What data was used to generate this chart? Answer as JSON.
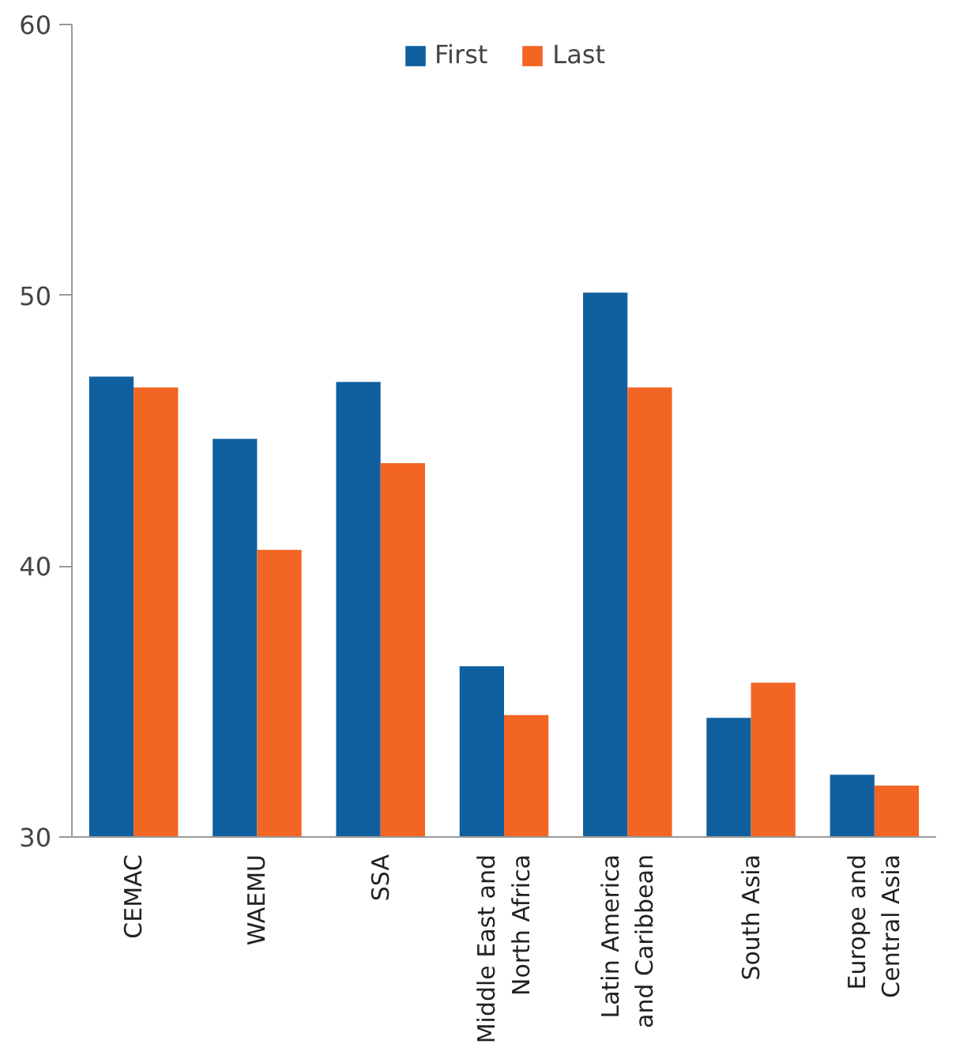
{
  "chart_data": {
    "type": "bar",
    "categories": [
      "CEMAC",
      "WAEMU",
      "SSA",
      "Middle East and\nNorth Africa",
      "Latin America\nand Caribbean",
      "South Asia",
      "Europe and\nCentral Asia"
    ],
    "series": [
      {
        "name": "First",
        "color": "#1060a0",
        "values": [
          47.0,
          44.7,
          46.8,
          36.3,
          50.1,
          34.4,
          32.3
        ]
      },
      {
        "name": "Last",
        "color": "#f26522",
        "values": [
          46.6,
          40.6,
          43.8,
          34.5,
          46.6,
          35.7,
          31.9
        ]
      }
    ],
    "ylim": [
      30,
      60
    ],
    "yticks": [
      30,
      40,
      50,
      60
    ],
    "grid": false,
    "legend": "top"
  }
}
